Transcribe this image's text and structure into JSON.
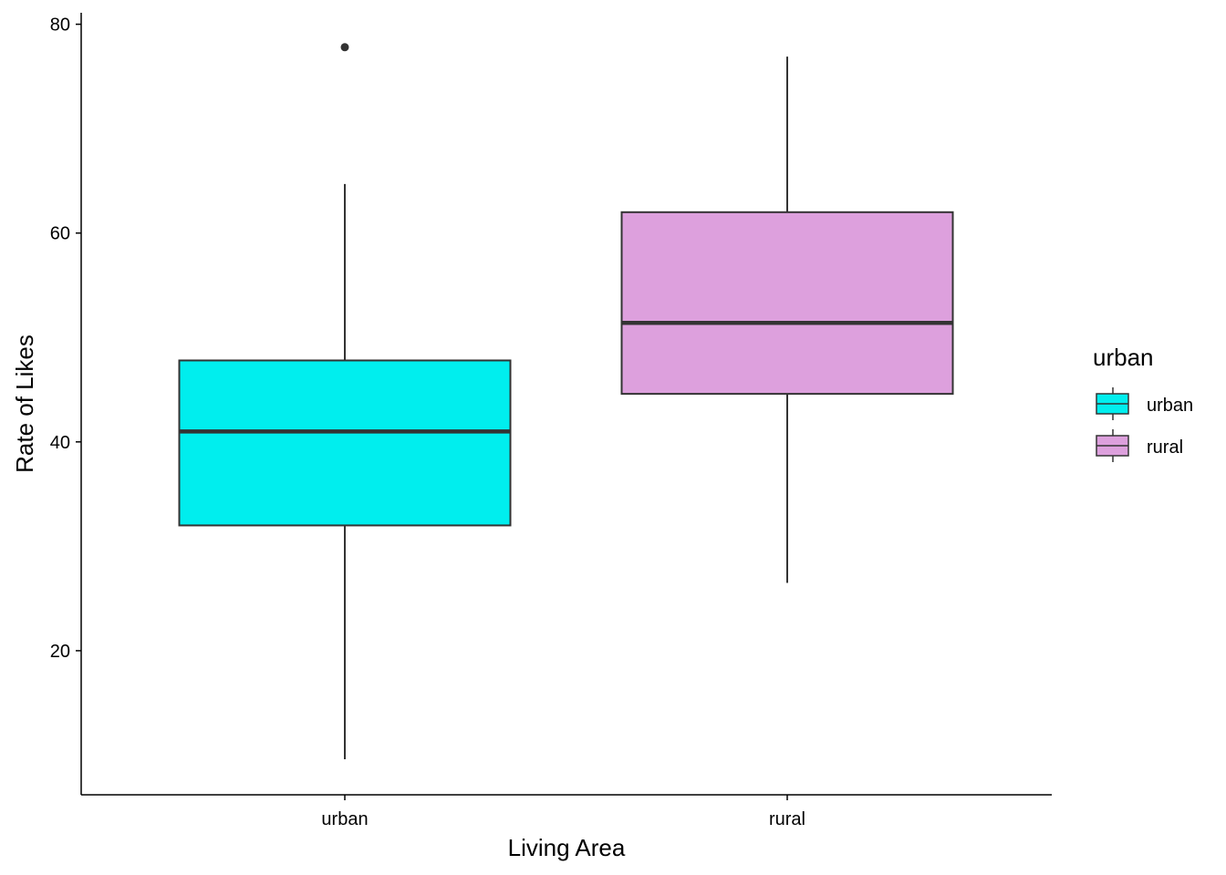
{
  "chart_data": {
    "type": "box",
    "title": "",
    "xlabel": "Living Area",
    "ylabel": "Rate of Likes",
    "ylim": [
      6.2,
      81.1
    ],
    "yticks": [
      20,
      40,
      60,
      80
    ],
    "grid": false,
    "categories": [
      "urban",
      "rural"
    ],
    "series": [
      {
        "name": "urban",
        "color": "#00EEEE",
        "whisker_low": 9.6,
        "q1": 32.0,
        "median": 41.0,
        "q3": 47.8,
        "whisker_high": 64.7,
        "outliers": [
          77.8
        ]
      },
      {
        "name": "rural",
        "color": "#DDA0DD",
        "whisker_low": 26.5,
        "q1": 44.6,
        "median": 51.4,
        "q3": 62.0,
        "whisker_high": 76.9,
        "outliers": []
      }
    ],
    "legend": {
      "title": "urban",
      "placement": "right",
      "entries": [
        "urban",
        "rural"
      ]
    }
  }
}
